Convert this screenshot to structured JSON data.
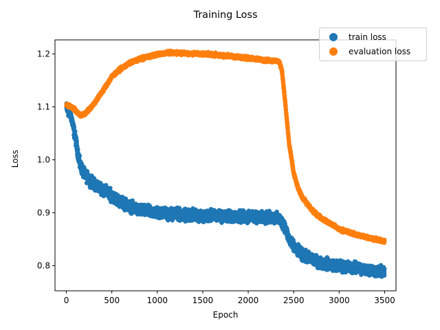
{
  "chart_data": {
    "type": "scatter",
    "title": "Training Loss",
    "xlabel": "Epoch",
    "ylabel": "Loss",
    "xlim": [
      -125,
      3625
    ],
    "ylim": [
      0.7525,
      1.2265
    ],
    "xticks": [
      0,
      500,
      1000,
      1500,
      2000,
      2500,
      3000,
      3500
    ],
    "yticks": [
      0.8,
      0.9,
      1.0,
      1.1,
      1.2
    ],
    "ytick_labels": [
      "0.8",
      "0.9",
      "1.0",
      "1.1",
      "1.2"
    ],
    "grid": false,
    "legend_position": "top-right",
    "series": [
      {
        "name": "train loss",
        "color": "#1f77b4",
        "curve": [
          [
            0,
            1.098
          ],
          [
            50,
            1.085
          ],
          [
            100,
            1.04
          ],
          [
            150,
            0.99
          ],
          [
            200,
            0.972
          ],
          [
            300,
            0.955
          ],
          [
            400,
            0.945
          ],
          [
            500,
            0.932
          ],
          [
            600,
            0.92
          ],
          [
            700,
            0.912
          ],
          [
            800,
            0.905
          ],
          [
            1000,
            0.9
          ],
          [
            1200,
            0.897
          ],
          [
            1500,
            0.895
          ],
          [
            1800,
            0.893
          ],
          [
            2000,
            0.892
          ],
          [
            2200,
            0.891
          ],
          [
            2300,
            0.89
          ],
          [
            2350,
            0.887
          ],
          [
            2400,
            0.875
          ],
          [
            2450,
            0.85
          ],
          [
            2500,
            0.835
          ],
          [
            2600,
            0.82
          ],
          [
            2700,
            0.812
          ],
          [
            2800,
            0.805
          ],
          [
            3000,
            0.8
          ],
          [
            3200,
            0.795
          ],
          [
            3400,
            0.79
          ],
          [
            3500,
            0.787
          ]
        ],
        "noise": 0.005,
        "n_points": 3500
      },
      {
        "name": "evaluation loss",
        "color": "#ff7f0e",
        "curve": [
          [
            0,
            1.103
          ],
          [
            50,
            1.101
          ],
          [
            100,
            1.093
          ],
          [
            150,
            1.084
          ],
          [
            200,
            1.086
          ],
          [
            300,
            1.105
          ],
          [
            400,
            1.13
          ],
          [
            500,
            1.157
          ],
          [
            600,
            1.172
          ],
          [
            700,
            1.183
          ],
          [
            800,
            1.19
          ],
          [
            900,
            1.195
          ],
          [
            1000,
            1.199
          ],
          [
            1100,
            1.202
          ],
          [
            1200,
            1.202
          ],
          [
            1500,
            1.2
          ],
          [
            1800,
            1.196
          ],
          [
            2000,
            1.192
          ],
          [
            2200,
            1.188
          ],
          [
            2300,
            1.187
          ],
          [
            2340,
            1.185
          ],
          [
            2370,
            1.17
          ],
          [
            2400,
            1.12
          ],
          [
            2450,
            1.03
          ],
          [
            2500,
            0.975
          ],
          [
            2550,
            0.945
          ],
          [
            2600,
            0.928
          ],
          [
            2700,
            0.905
          ],
          [
            2800,
            0.89
          ],
          [
            3000,
            0.869
          ],
          [
            3200,
            0.858
          ],
          [
            3400,
            0.85
          ],
          [
            3500,
            0.845
          ]
        ],
        "noise": 0.0015,
        "n_points": 3500
      }
    ]
  }
}
